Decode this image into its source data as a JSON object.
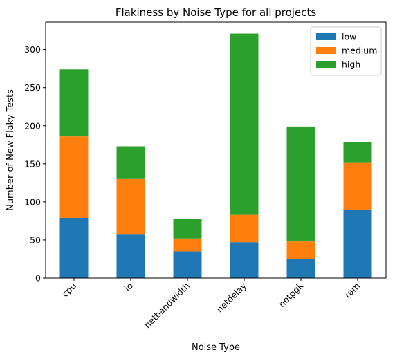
{
  "chart_data": {
    "type": "bar",
    "stacked": true,
    "title": "Flakiness by Noise Type for all projects",
    "xlabel": "Noise Type",
    "ylabel": "Number of New Flaky Tests",
    "categories": [
      "cpu",
      "io",
      "netbandwidth",
      "netdelay",
      "netpgk",
      "ram"
    ],
    "series": [
      {
        "name": "low",
        "color": "#1f77b4",
        "values": [
          79,
          57,
          35,
          47,
          25,
          89
        ]
      },
      {
        "name": "medium",
        "color": "#ff7f0e",
        "values": [
          107,
          73,
          17,
          36,
          23,
          63
        ]
      },
      {
        "name": "high",
        "color": "#2ca02c",
        "values": [
          88,
          43,
          26,
          238,
          151,
          26
        ]
      }
    ],
    "ylim": [
      0,
      336
    ],
    "yticks": [
      0,
      50,
      100,
      150,
      200,
      250,
      300
    ],
    "legend_position": "top-right",
    "grid": false
  }
}
